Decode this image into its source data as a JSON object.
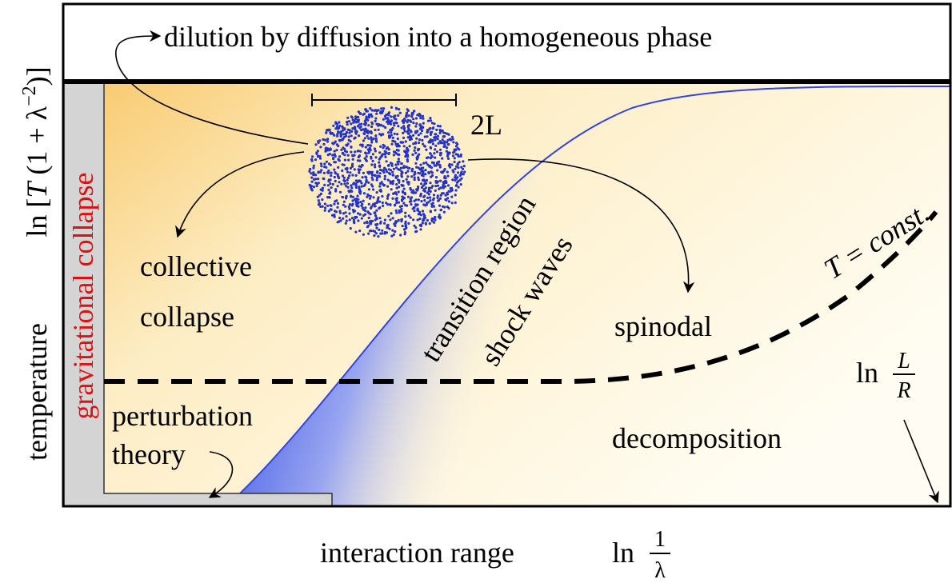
{
  "top_label": "dilution by diffusion into a homogeneous phase",
  "scale_label": "2L",
  "regions": {
    "collective_collapse": [
      "collective",
      "collapse"
    ],
    "transition": [
      "transition region",
      "shock waves"
    ],
    "spinodal": "spinodal",
    "decomposition": "decomposition",
    "perturbation_theory": [
      "perturbation",
      "theory"
    ],
    "gravitational_collapse": "gravitational collapse"
  },
  "isotherm": {
    "T": "T",
    "rest": " = const."
  },
  "size_ratio": {
    "ln": "ln",
    "numerator": "L",
    "denominator": "R"
  },
  "y_axis": {
    "name": "temperature",
    "expr": [
      "ln [",
      "T",
      " (1 + λ",
      "−2",
      ")]"
    ]
  },
  "x_axis": {
    "name": "interaction range",
    "ln": "ln",
    "numerator": "1",
    "denominator": "λ"
  }
}
